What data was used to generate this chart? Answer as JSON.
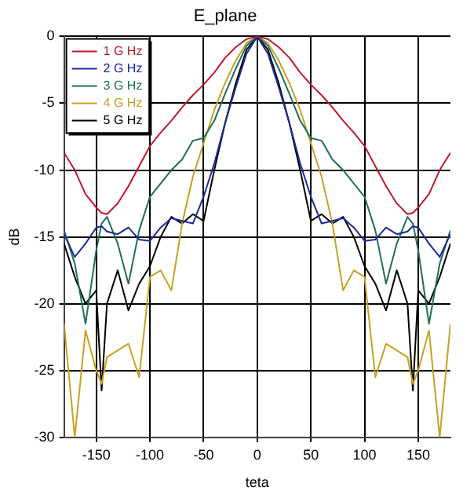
{
  "chart_data": {
    "type": "line",
    "title": "E_plane",
    "xlabel": "teta",
    "ylabel": "dB",
    "x": [
      -180,
      -170,
      -160,
      -150,
      -145,
      -140,
      -130,
      -120,
      -110,
      -100,
      -90,
      -80,
      -70,
      -60,
      -50,
      -40,
      -30,
      -20,
      -10,
      0,
      10,
      20,
      30,
      40,
      50,
      60,
      70,
      80,
      90,
      100,
      110,
      120,
      130,
      140,
      145,
      150,
      160,
      170,
      180
    ],
    "series": [
      {
        "name": "1 G Hz",
        "color": "#c0182a",
        "values": [
          -8.7,
          -10,
          -11.8,
          -12.8,
          -13.2,
          -13.3,
          -12.5,
          -11.2,
          -9.7,
          -8.2,
          -7.2,
          -6.3,
          -5.3,
          -4.4,
          -3.6,
          -2.7,
          -1.6,
          -0.8,
          -0.2,
          0,
          -0.2,
          -0.8,
          -1.6,
          -2.7,
          -3.6,
          -4.4,
          -5.3,
          -6.3,
          -7.2,
          -8.2,
          -9.7,
          -11.2,
          -12.5,
          -13.3,
          -13.2,
          -12.8,
          -11.8,
          -10,
          -8.7
        ]
      },
      {
        "name": "2 G Hz",
        "color": "#1a2a9c",
        "values": [
          -14.8,
          -16.5,
          -15.5,
          -14.3,
          -14.2,
          -14.6,
          -14.8,
          -14.3,
          -15.2,
          -15.3,
          -14.3,
          -13.6,
          -13.8,
          -14,
          -12,
          -9.5,
          -6.5,
          -3.8,
          -1.3,
          0,
          -1.3,
          -3.8,
          -6.5,
          -9.5,
          -12,
          -14,
          -13.8,
          -13.6,
          -14.3,
          -15.3,
          -15.2,
          -14.3,
          -14.8,
          -14.6,
          -14.2,
          -14.3,
          -15.5,
          -16.5,
          -14.8
        ]
      },
      {
        "name": "3 G Hz",
        "color": "#1c6e5a",
        "values": [
          -14.5,
          -17,
          -21.5,
          -16,
          -14,
          -13.5,
          -15.5,
          -18.5,
          -14.5,
          -12,
          -11,
          -10,
          -9.2,
          -7.8,
          -7.6,
          -6.3,
          -4.3,
          -2.4,
          -0.7,
          0,
          -0.7,
          -2.4,
          -4.3,
          -6.3,
          -7.6,
          -7.8,
          -9.2,
          -10,
          -11,
          -12,
          -14.5,
          -18.5,
          -15.5,
          -13.5,
          -14,
          -16,
          -21.5,
          -17,
          -14.5
        ]
      },
      {
        "name": "4 G Hz",
        "color": "#c8a020",
        "values": [
          -21.5,
          -30,
          -22,
          -25,
          -26,
          -24,
          -23.5,
          -23,
          -25.5,
          -18,
          -17.5,
          -19,
          -14,
          -10.5,
          -8,
          -5.5,
          -3.5,
          -1.8,
          -0.5,
          0,
          -0.5,
          -1.8,
          -3.5,
          -5.5,
          -8,
          -10.5,
          -14,
          -19,
          -17.5,
          -18,
          -25.5,
          -23,
          -23.5,
          -24,
          -26,
          -25,
          -22,
          -30,
          -21.5
        ]
      },
      {
        "name": "5 G Hz",
        "color": "#000000",
        "values": [
          -15.5,
          -18,
          -20,
          -19,
          -26.5,
          -20,
          -17.5,
          -20.5,
          -18.5,
          -17.2,
          -15,
          -13.5,
          -14,
          -13.3,
          -13.8,
          -10,
          -6.5,
          -3.5,
          -1,
          0,
          -1,
          -3.5,
          -6.5,
          -10,
          -13.8,
          -13.3,
          -14,
          -13.5,
          -15,
          -17.2,
          -18.5,
          -20.5,
          -17.5,
          -20,
          -26.5,
          -19,
          -20,
          -18,
          -15.5
        ]
      }
    ],
    "xlim": [
      -180,
      180
    ],
    "xticks": [
      -150,
      -100,
      -50,
      0,
      50,
      100,
      150
    ],
    "ylim": [
      -30,
      0
    ],
    "yticks": [
      -30,
      -25,
      -20,
      -15,
      -10,
      -5,
      0
    ],
    "grid": true,
    "legend": "top left",
    "marker": "none",
    "line_style": "solid"
  }
}
